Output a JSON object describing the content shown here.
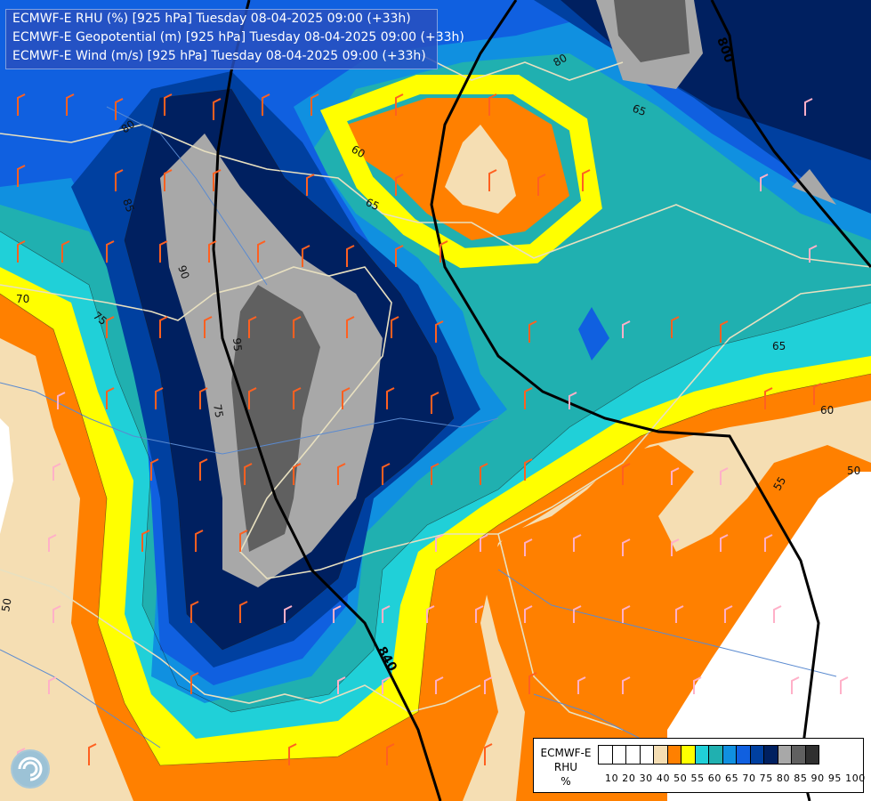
{
  "title_lines": [
    "ECMWF-E RHU (%) [925 hPa] Tuesday 08-04-2025 09:00 (+33h)",
    "ECMWF-E Geopotential (m) [925 hPa] Tuesday 08-04-2025 09:00 (+33h)",
    "ECMWF-E Wind (m/s) [925 hPa] Tuesday 08-04-2025 09:00 (+33h)"
  ],
  "legend": {
    "title_lines": [
      "ECMWF-E",
      "RHU",
      "%"
    ],
    "levels": [
      "10",
      "20",
      "30",
      "40",
      "50",
      "55",
      "60",
      "65",
      "70",
      "75",
      "80",
      "85",
      "90",
      "95",
      "100"
    ],
    "colors": [
      "#ffffff",
      "#ffffff",
      "#ffffff",
      "#ffffff",
      "#f5deb3",
      "#ff8000",
      "#ffff00",
      "#20d0d8",
      "#20b0b0",
      "#1090e0",
      "#1060e0",
      "#0040a0",
      "#002060",
      "#a8a8a8",
      "#606060",
      "#303030"
    ]
  },
  "contour_labels": {
    "rhu": [
      "80",
      "85",
      "90",
      "95",
      "70",
      "75",
      "60",
      "65",
      "80",
      "65",
      "65",
      "60",
      "55",
      "50",
      "50",
      "75"
    ],
    "geopotential": [
      "800",
      "840"
    ]
  },
  "colors": {
    "geopotential_line": "#000000",
    "border": "#e8e0c0",
    "river": "#5a8ad0",
    "barb_high": "#ff6020",
    "barb_low": "#ffb0c8"
  }
}
